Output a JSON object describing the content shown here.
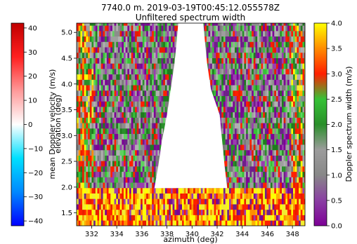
{
  "chart_data": {
    "type": "heatmap",
    "title_line1": "7740.0 m. 2019-03-19T00:45:12.055578Z",
    "title_line2": "Unfiltered spectrum width",
    "xlabel": "azimuth (deg)",
    "ylabel": "elevation (deg)",
    "xlim": [
      330.8,
      349.0
    ],
    "ylim": [
      1.25,
      5.18
    ],
    "xticks": [
      "332",
      "334",
      "336",
      "338",
      "340",
      "342",
      "344",
      "346",
      "348"
    ],
    "xtick_values": [
      332,
      334,
      336,
      338,
      340,
      342,
      344,
      346,
      348
    ],
    "yticks": [
      "1.5",
      "2.0",
      "2.5",
      "3.0",
      "3.5",
      "4.0",
      "4.5",
      "5.0"
    ],
    "ytick_values": [
      1.5,
      2.0,
      2.5,
      3.0,
      3.5,
      4.0,
      4.5,
      5.0
    ],
    "no_data_region": {
      "elevation_min": 1.98,
      "edges": [
        {
          "elevation": 1.98,
          "az_left": 337.0,
          "az_right": 342.8
        },
        {
          "elevation": 2.4,
          "az_left": 337.3,
          "az_right": 342.6
        },
        {
          "elevation": 2.9,
          "az_left": 337.6,
          "az_right": 342.4
        },
        {
          "elevation": 3.4,
          "az_left": 338.0,
          "az_right": 342.2
        },
        {
          "elevation": 3.9,
          "az_left": 338.3,
          "az_right": 341.5
        },
        {
          "elevation": 4.4,
          "az_left": 338.6,
          "az_right": 341.2
        },
        {
          "elevation": 4.9,
          "az_left": 338.8,
          "az_right": 341.0
        },
        {
          "elevation": 5.18,
          "az_left": 338.9,
          "az_right": 340.9
        }
      ]
    },
    "width_colorbar": {
      "label": "Doppler spectrum width (m/s)",
      "range": [
        0.0,
        4.0
      ],
      "ticks": [
        "0.0",
        "0.5",
        "1.0",
        "1.5",
        "2.0",
        "2.5",
        "3.0",
        "3.5",
        "4.0"
      ],
      "tick_values": [
        0.0,
        0.5,
        1.0,
        1.5,
        2.0,
        2.5,
        3.0,
        3.5,
        4.0
      ],
      "colors": [
        "#7d0096",
        "#8a3fa3",
        "#888888",
        "#9c9c9c",
        "#2a8f2a",
        "#36c236",
        "#ff2000",
        "#ff8c00",
        "#ffff00"
      ]
    },
    "velocity_colorbar": {
      "label": "mean Doppler velocity (m/s)",
      "range": [
        -42,
        42
      ],
      "ticks": [
        "−40",
        "−30",
        "−20",
        "−10",
        "0",
        "10",
        "20",
        "30",
        "40"
      ],
      "tick_values": [
        -40,
        -30,
        -20,
        -10,
        0,
        10,
        20,
        30,
        40
      ],
      "colors": [
        "#0000ff",
        "#0088ff",
        "#00e0ff",
        "#ffffff",
        "#ff9999",
        "#ff2020",
        "#c00000"
      ]
    }
  }
}
